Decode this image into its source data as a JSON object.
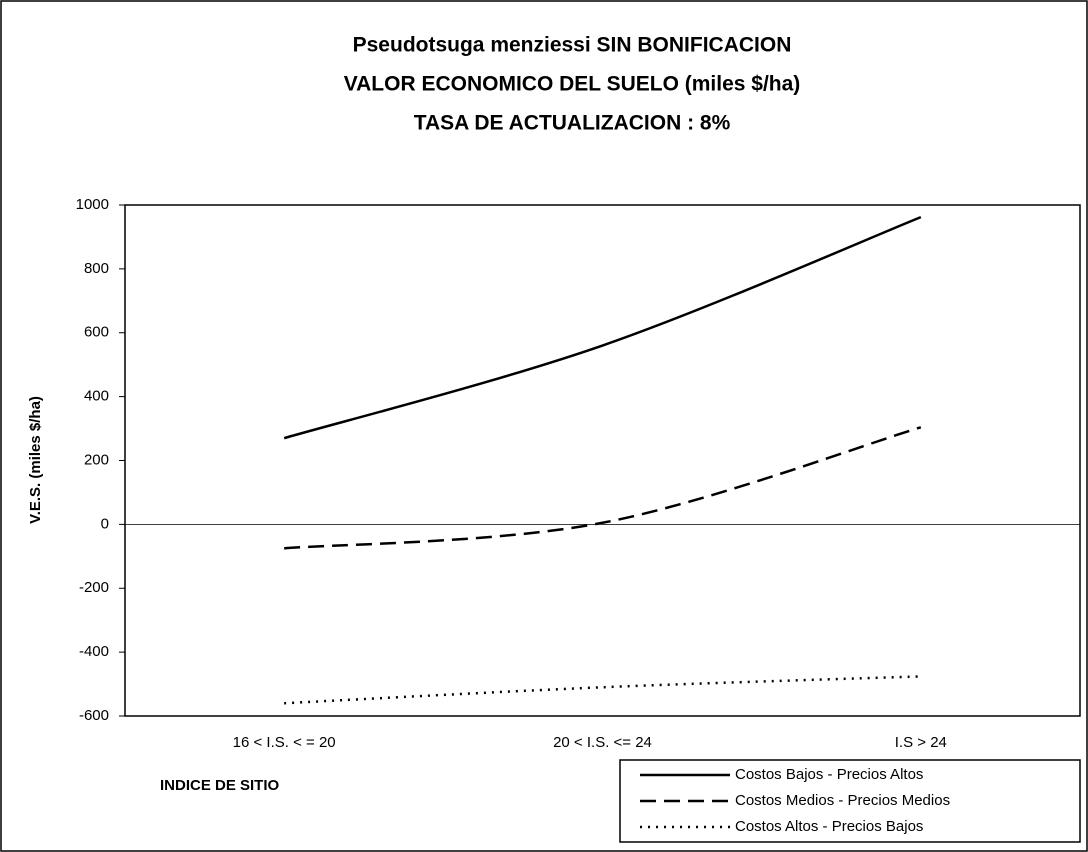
{
  "chart_data": {
    "type": "line",
    "title": [
      "Pseudotsuga menziessi SIN BONIFICACION",
      "VALOR ECONOMICO DEL SUELO (miles $/ha)",
      "TASA DE ACTUALIZACION : 8%"
    ],
    "xlabel": "INDICE DE SITIO",
    "ylabel": "V.E.S. (miles $/ha)",
    "categories": [
      "16 <  I.S. < = 20",
      "20 < I.S. <= 24",
      "I.S > 24"
    ],
    "series": [
      {
        "name": "Costos Bajos - Precios Altos",
        "color": "#000000",
        "dash": "solid",
        "values": [
          270,
          560,
          962
        ]
      },
      {
        "name": "Costos Medios - Precios Medios",
        "color": "#000000",
        "dash": "dashed",
        "values": [
          -75,
          5,
          304
        ]
      },
      {
        "name": "Costos Altos - Precios Bajos",
        "color": "#000000",
        "dash": "dotted",
        "values": [
          -560,
          -510,
          -476
        ]
      }
    ],
    "ylim": [
      -600,
      1000
    ],
    "yticks": [
      -600,
      -400,
      -200,
      0,
      200,
      400,
      600,
      800,
      1000
    ],
    "smooth": true,
    "legend": "bottom-right"
  }
}
